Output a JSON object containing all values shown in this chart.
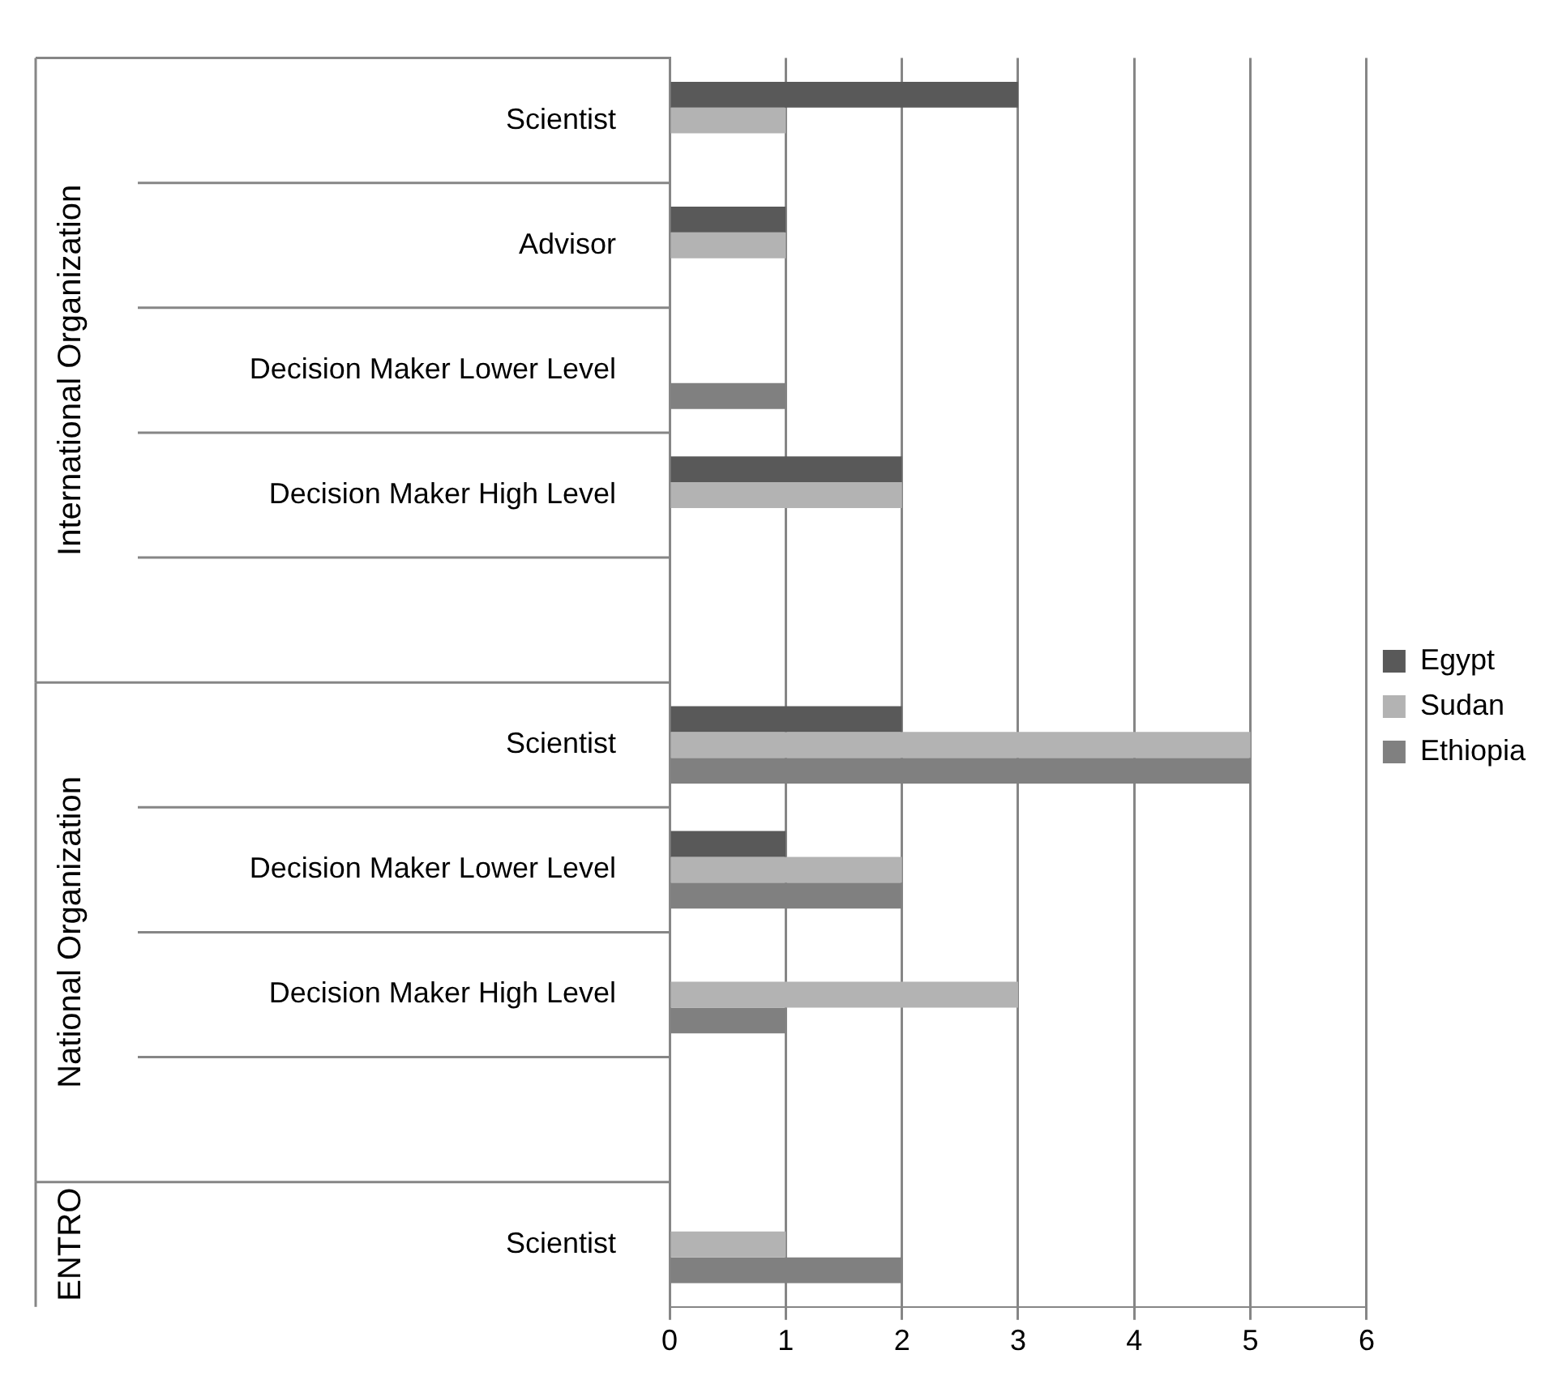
{
  "chart_data": {
    "type": "bar",
    "orientation": "horizontal",
    "categories": [
      "Scientist",
      "Advisor",
      "Decision Maker Lower Level",
      "Decision Maker High Level",
      null,
      "Scientist",
      "Decision Maker Lower Level",
      "Decision Maker High Level",
      null,
      "Scientist"
    ],
    "series": [
      {
        "name": "Egypt",
        "color": "#595959",
        "values": [
          3,
          1,
          null,
          2,
          null,
          2,
          1,
          null,
          null,
          null
        ]
      },
      {
        "name": "Sudan",
        "color": "#b3b3b3",
        "values": [
          1,
          1,
          null,
          2,
          null,
          5,
          2,
          3,
          null,
          1
        ]
      },
      {
        "name": "Ethiopia",
        "color": "#808080",
        "values": [
          null,
          null,
          1,
          null,
          null,
          5,
          2,
          1,
          null,
          2
        ]
      }
    ],
    "annotations": [
      "International Organization",
      "National Organization",
      "ENTRO"
    ],
    "xlim": [
      0,
      6
    ],
    "xticks": [
      0,
      1,
      2,
      3,
      4,
      5,
      6
    ],
    "grid": "x",
    "legend": "right"
  }
}
